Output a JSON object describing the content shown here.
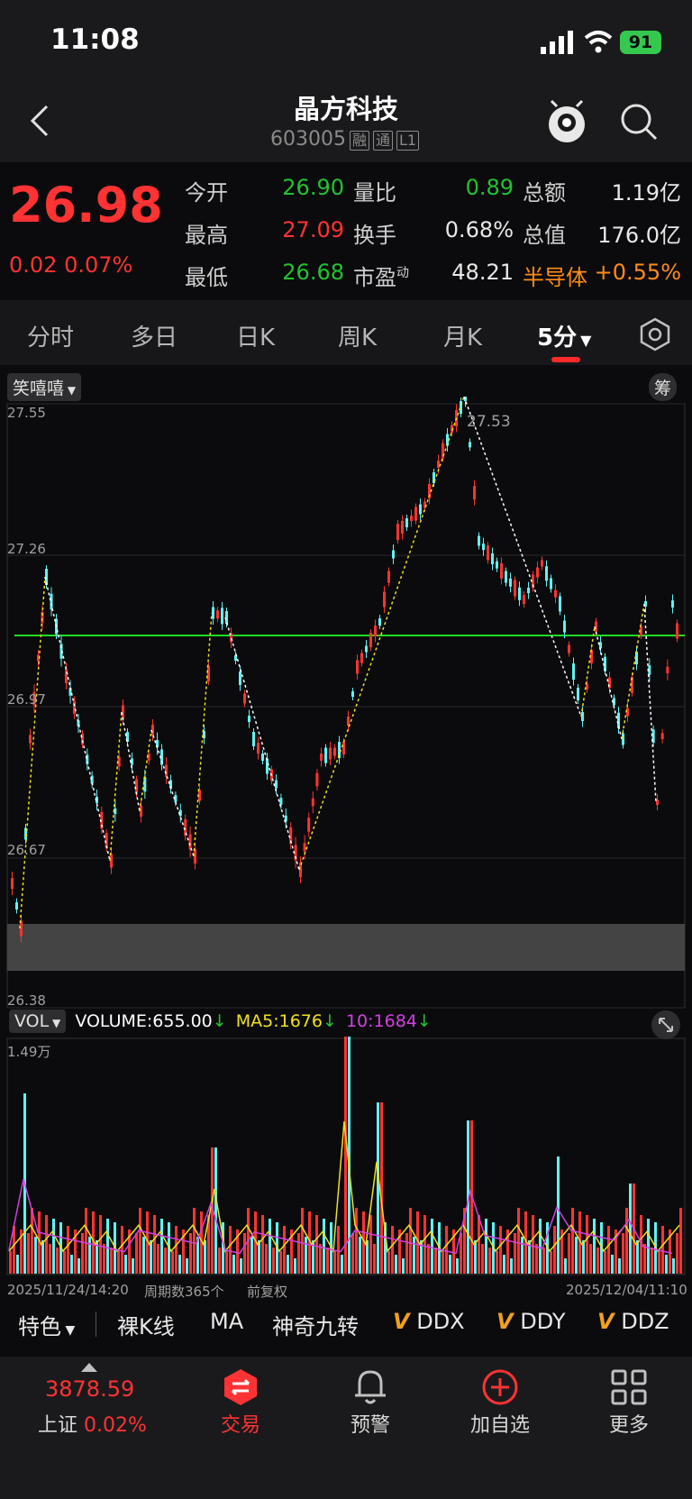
{
  "status": {
    "time": "11:08",
    "battery": "91"
  },
  "header": {
    "title": "晶方科技",
    "code": "603005",
    "tags": [
      "融",
      "通",
      "L1"
    ]
  },
  "quote": {
    "price": "26.98",
    "change": "0.02",
    "change_pct": "0.07%",
    "rows": [
      [
        {
          "label": "今开",
          "value": "26.90"
        },
        {
          "label": "量比",
          "value": "0.89"
        },
        {
          "label": "总额",
          "value": "1.19亿"
        }
      ],
      [
        {
          "label": "最高",
          "value": "27.09"
        },
        {
          "label": "换手",
          "value": "0.68%"
        },
        {
          "label": "总值",
          "value": "176.0亿"
        }
      ],
      [
        {
          "label": "最低",
          "value": "26.68"
        },
        {
          "label": "市盈",
          "sup": "动",
          "value": "48.21"
        },
        {
          "label": "半导体",
          "value": "+0.55%"
        }
      ]
    ]
  },
  "tabs": [
    "分时",
    "多日",
    "日K",
    "周K",
    "月K",
    "5分"
  ],
  "chart": {
    "indicator_badge": "笑嘻嘻",
    "chip_badge": "筹",
    "y_labels": [
      "27.55",
      "27.26",
      "26.97",
      "26.67",
      "26.38"
    ],
    "high_label": "27.53",
    "vol_badge": "VOL",
    "volume_label": "VOLUME:655.00",
    "ma5_label": "MA5:1676",
    "ma10_label": "10:1684",
    "vol_max_label": "1.49万",
    "start_date": "2025/11/24/14:20",
    "period_count": "周期数365个",
    "adjust": "前复权",
    "end_date": "2025/12/04/11:10"
  },
  "colors": {
    "up": "#ff3333",
    "down": "#5ff3f3",
    "support_line": "#22dd22",
    "ma5": "#f0e020",
    "ma10": "#d040e0"
  },
  "indicators": [
    "特色",
    "裸K线",
    "MA",
    "神奇九转",
    "DDX",
    "DDY",
    "DDZ"
  ],
  "bottom_nav": {
    "index_value": "3878.59",
    "index_name": "上证",
    "index_pct": "0.02%",
    "items": [
      "交易",
      "预警",
      "加自选",
      "更多"
    ]
  },
  "icons": [
    "back-icon",
    "mascot-icon",
    "search-icon",
    "settings-hex-icon",
    "expand-icon",
    "trade-icon",
    "bell-icon",
    "add-circle-icon",
    "grid-icon",
    "signal-icon",
    "wifi-icon"
  ]
}
